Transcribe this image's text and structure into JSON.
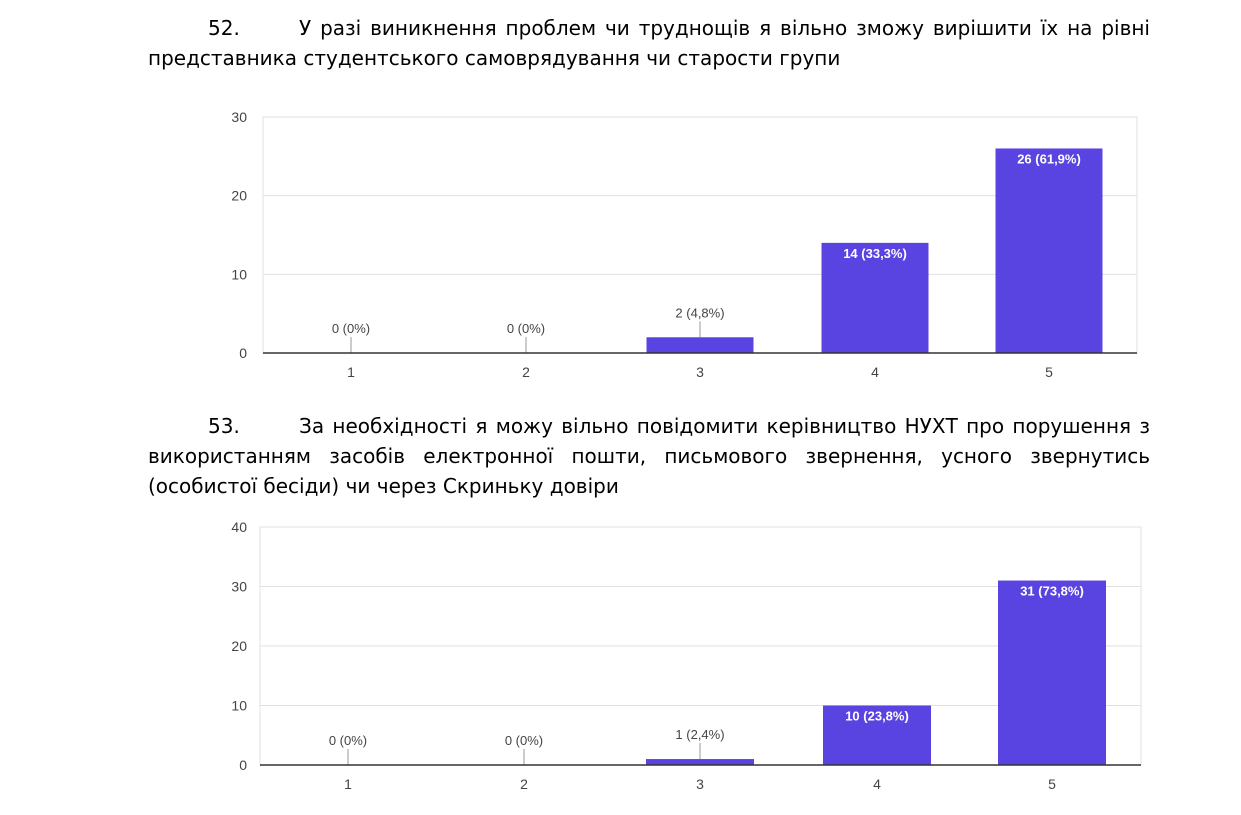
{
  "questions": [
    {
      "number": "52.",
      "text": "У разі виникнення проблем чи труднощів я вільно зможу вирішити їх на рівні представника студентського самоврядування чи старости групи"
    },
    {
      "number": "53.",
      "text": "За необхідності я можу вільно повідомити керівництво НУХТ про порушення з використанням засобів електронної пошти, письмового звернення, усного звернутись (особистої бесіди) чи через Скриньку довіри"
    }
  ],
  "colors": {
    "bar": "#5944e2",
    "grid": "#e0e0e0",
    "axis": "#333333"
  },
  "chart_data": [
    {
      "type": "bar",
      "categories": [
        "1",
        "2",
        "3",
        "4",
        "5"
      ],
      "values": [
        0,
        0,
        2,
        14,
        26
      ],
      "labels": [
        "0 (0%)",
        "0 (0%)",
        "2 (4,8%)",
        "14 (33,3%)",
        "26 (61,9%)"
      ],
      "ylim": [
        0,
        30
      ],
      "yticks": [
        0,
        10,
        20,
        30
      ],
      "grid": true
    },
    {
      "type": "bar",
      "categories": [
        "1",
        "2",
        "3",
        "4",
        "5"
      ],
      "values": [
        0,
        0,
        1,
        10,
        31
      ],
      "labels": [
        "0 (0%)",
        "0 (0%)",
        "1 (2,4%)",
        "10 (23,8%)",
        "31 (73,8%)"
      ],
      "ylim": [
        0,
        40
      ],
      "yticks": [
        0,
        10,
        20,
        30,
        40
      ],
      "grid": true
    }
  ]
}
